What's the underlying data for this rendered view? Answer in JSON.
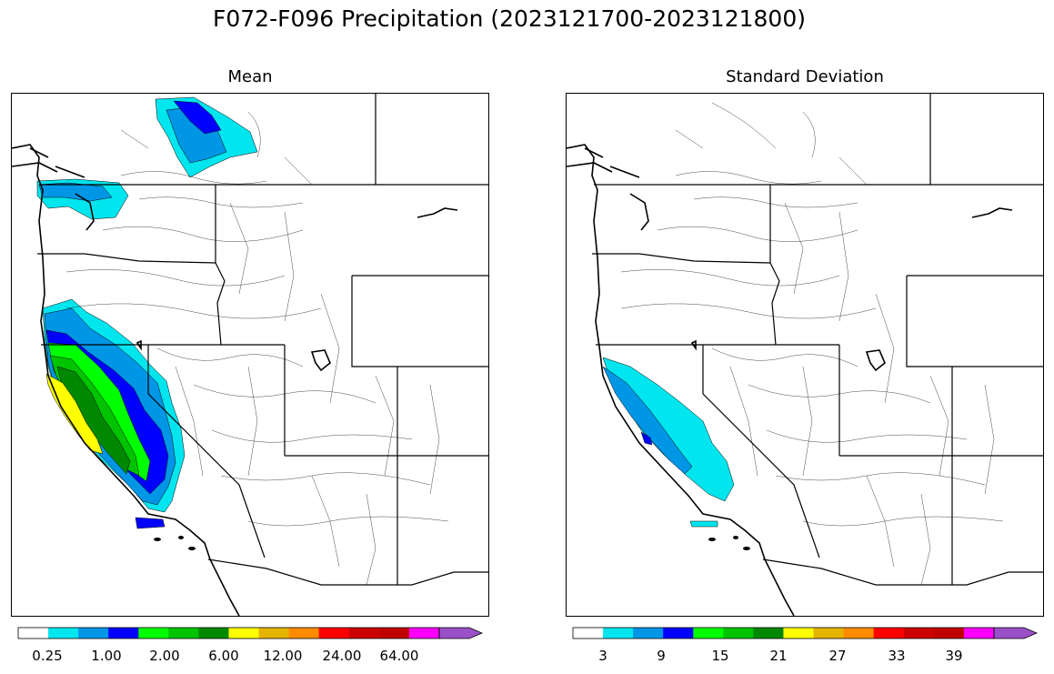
{
  "figure": {
    "suptitle": "F072-F096 Precipitation (2023121700-2023121800)"
  },
  "panels": {
    "mean": {
      "title": "Mean"
    },
    "std": {
      "title": "Standard Deviation"
    }
  },
  "colorbars": {
    "colors": [
      "#ffffff",
      "#00e5ee",
      "#0096e6",
      "#0000ff",
      "#00ff00",
      "#00c400",
      "#008800",
      "#ffff00",
      "#e6b400",
      "#ff8c00",
      "#ff0000",
      "#cc0000",
      "#c00000",
      "#ff00ff",
      "#9a50c8"
    ],
    "mean_ticks": [
      "0.25",
      "1.00",
      "2.00",
      "6.00",
      "12.00",
      "24.00",
      "64.00"
    ],
    "std_ticks": [
      "3",
      "9",
      "15",
      "21",
      "27",
      "33",
      "39"
    ]
  },
  "legend_colors": {
    "coast": "#000000",
    "cyan": "#00e5ee",
    "lightblue": "#0096e6",
    "blue": "#0000ff",
    "green": "#00c400",
    "darkgreen": "#008800",
    "yellow": "#ffff00",
    "lime": "#00ff00"
  }
}
